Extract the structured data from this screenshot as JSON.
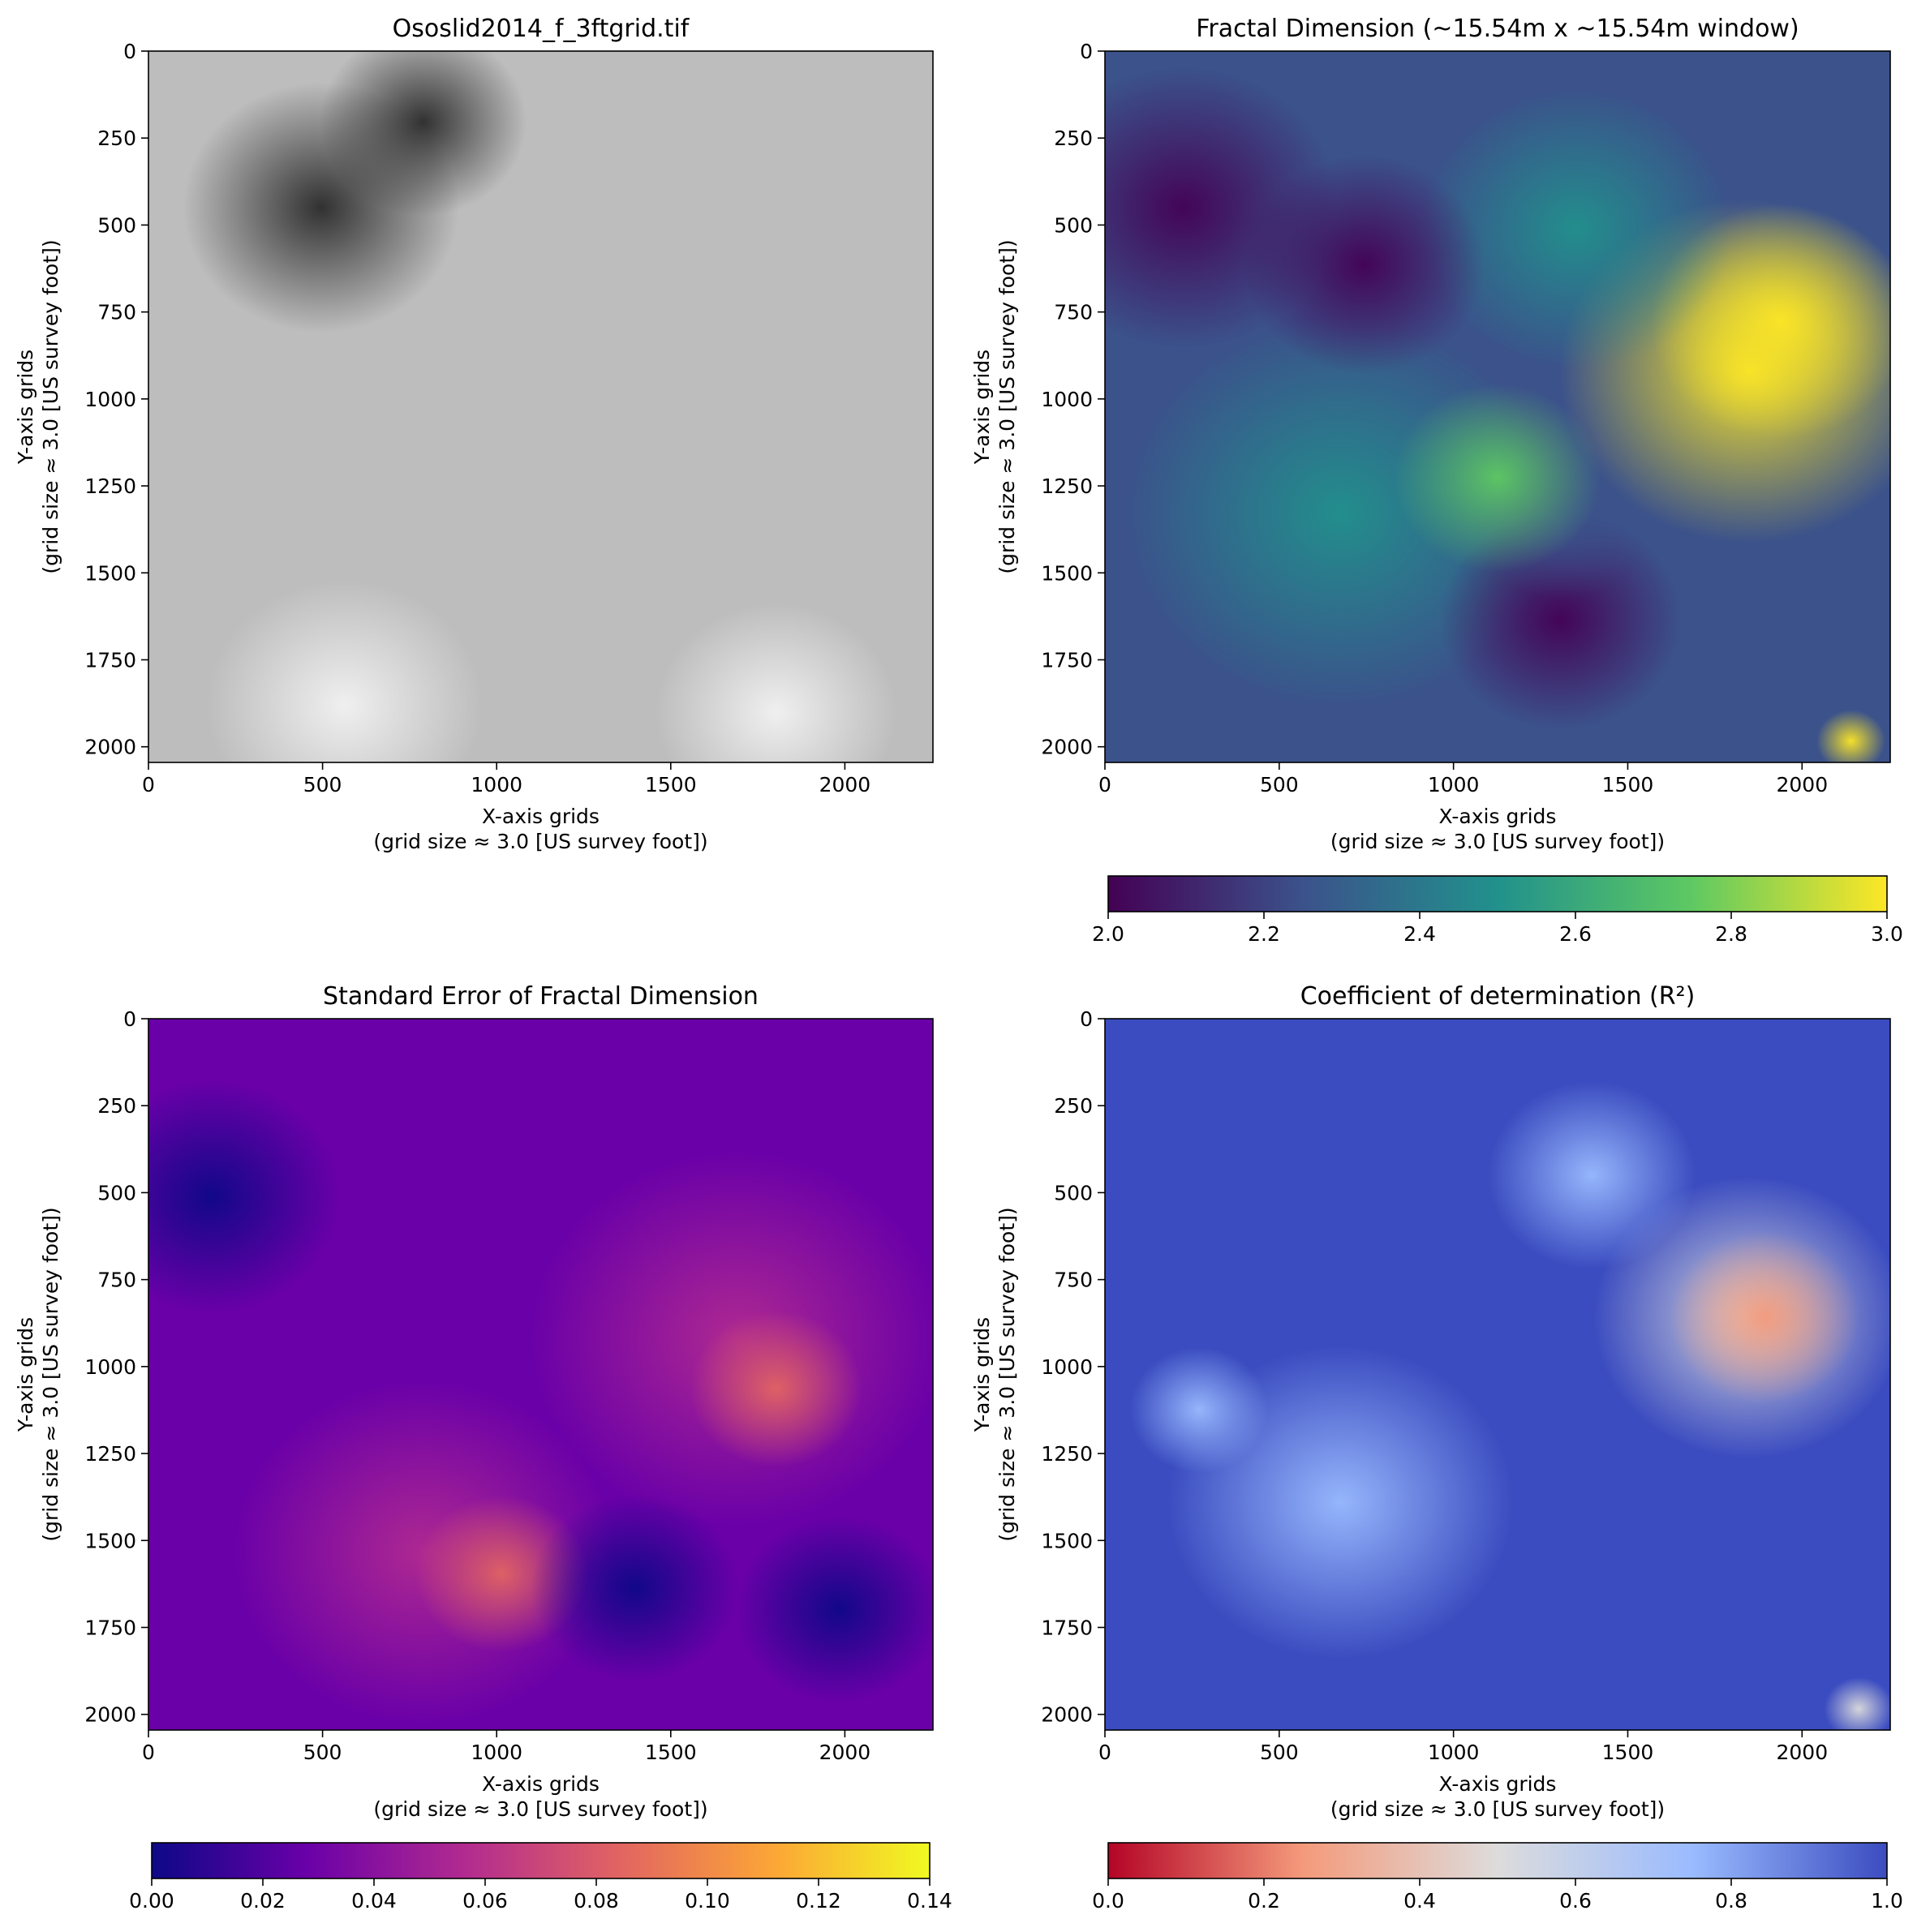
{
  "chart_data": [
    {
      "type": "heatmap",
      "id": "hillshade",
      "title": "Ososlid2014_f_3ftgrid.tif",
      "xlabel": "X-axis grids\n(grid size ≈ 3.0 [US survey foot])",
      "ylabel": "Y-axis grids\n(grid size ≈ 3.0 [US survey foot])",
      "xlim": [
        0,
        2253
      ],
      "ylim": [
        2045,
        0
      ],
      "xticks": [
        0,
        500,
        1000,
        1500,
        2000
      ],
      "yticks": [
        0,
        250,
        500,
        750,
        1000,
        1250,
        1500,
        1750,
        2000
      ],
      "colormap": "gray",
      "colors": [
        "#2a2a2a",
        "#bdbdbd",
        "#f2f2f2"
      ]
    },
    {
      "type": "heatmap",
      "id": "fractal-dimension",
      "title": "Fractal Dimension (~15.54m x ~15.54m window)",
      "xlabel": "X-axis grids\n(grid size ≈ 3.0 [US survey foot])",
      "ylabel": "Y-axis grids\n(grid size ≈ 3.0 [US survey foot])",
      "xlim": [
        0,
        2253
      ],
      "ylim": [
        2045,
        0
      ],
      "xticks": [
        0,
        500,
        1000,
        1500,
        2000
      ],
      "yticks": [
        0,
        250,
        500,
        750,
        1000,
        1250,
        1500,
        1750,
        2000
      ],
      "colormap": "viridis",
      "colors": [
        "#440154",
        "#3b528b",
        "#21918c",
        "#5ec962",
        "#fde725"
      ],
      "colorbar": {
        "range": [
          2.0,
          3.0
        ],
        "ticks": [
          "2.0",
          "2.2",
          "2.4",
          "2.6",
          "2.8",
          "3.0"
        ]
      }
    },
    {
      "type": "heatmap",
      "id": "standard-error",
      "title": "Standard Error of Fractal Dimension",
      "xlabel": "X-axis grids\n(grid size ≈ 3.0 [US survey foot])",
      "ylabel": "Y-axis grids\n(grid size ≈ 3.0 [US survey foot])",
      "xlim": [
        0,
        2253
      ],
      "ylim": [
        2045,
        0
      ],
      "xticks": [
        0,
        500,
        1000,
        1500,
        2000
      ],
      "yticks": [
        0,
        250,
        500,
        750,
        1000,
        1250,
        1500,
        1750,
        2000
      ],
      "colormap": "plasma",
      "colors": [
        "#0d0887",
        "#6a00a8",
        "#b12a90",
        "#e16462",
        "#fca636",
        "#f0f921"
      ],
      "colorbar": {
        "range": [
          0.0,
          0.14
        ],
        "ticks": [
          "0.00",
          "0.02",
          "0.04",
          "0.06",
          "0.08",
          "0.10",
          "0.12",
          "0.14"
        ]
      }
    },
    {
      "type": "heatmap",
      "id": "r-squared",
      "title": "Coefficient of determination (R²)",
      "xlabel": "X-axis grids\n(grid size ≈ 3.0 [US survey foot])",
      "ylabel": "Y-axis grids\n(grid size ≈ 3.0 [US survey foot])",
      "xlim": [
        0,
        2253
      ],
      "ylim": [
        2045,
        0
      ],
      "xticks": [
        0,
        500,
        1000,
        1500,
        2000
      ],
      "yticks": [
        0,
        250,
        500,
        750,
        1000,
        1250,
        1500,
        1750,
        2000
      ],
      "colormap": "coolwarm_r",
      "colors": [
        "#b40426",
        "#f49a7b",
        "#dddcdc",
        "#9abbff",
        "#3b4cc0"
      ],
      "colorbar": {
        "range": [
          0.0,
          1.0
        ],
        "ticks": [
          "0.0",
          "0.2",
          "0.4",
          "0.6",
          "0.8",
          "1.0"
        ]
      }
    }
  ]
}
